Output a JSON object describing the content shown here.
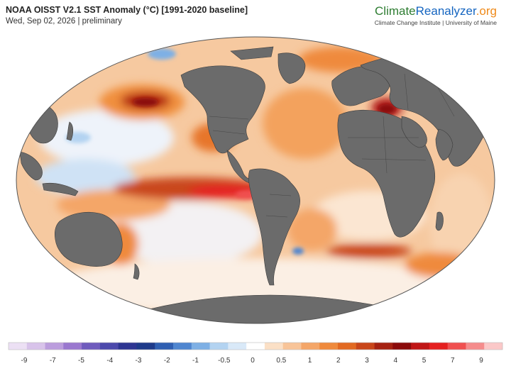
{
  "header": {
    "title": "NOAA OISST V2.1 SST Anomaly (°C) [1991-2020 baseline]",
    "subtitle": "Wed, Sep 02, 2026 | preliminary"
  },
  "brand": {
    "part_climate": "Climate",
    "part_reanalyzer": "Reanalyzer",
    "part_org": ".org",
    "subtitle": "Climate Change Institute | University of Maine"
  },
  "colors": {
    "land": "#6b6b6b",
    "ocean_base": "#f6c9a0"
  },
  "legend": {
    "colors": [
      "#ece0f4",
      "#d8c3ea",
      "#bb9ddd",
      "#9a78cf",
      "#6f5bbd",
      "#4c49ac",
      "#2e3592",
      "#1e3a8a",
      "#2f5fb2",
      "#4f86d0",
      "#7eb0e5",
      "#b3d3f1",
      "#d9e9f8",
      "#ffffff",
      "#fbe0c6",
      "#f8c498",
      "#f4a668",
      "#ef8a3c",
      "#e26a22",
      "#c9461a",
      "#a62212",
      "#8b0b0b",
      "#c01616",
      "#e52020",
      "#f05050",
      "#f58c8c",
      "#fbc8c8"
    ],
    "labels": [
      "-9",
      "-7",
      "-5",
      "-4",
      "-3",
      "-2",
      "-1",
      "-0.5",
      "0",
      "0.5",
      "1",
      "2",
      "3",
      "4",
      "5",
      "7",
      "9"
    ]
  }
}
